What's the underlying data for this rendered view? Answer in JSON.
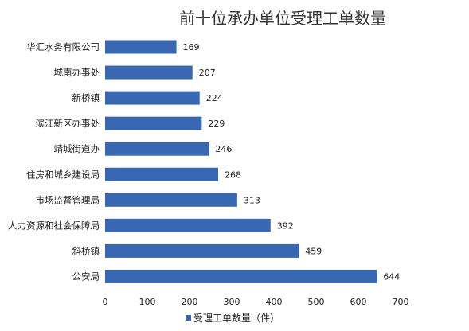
{
  "chart_data": {
    "type": "bar",
    "orientation": "horizontal",
    "title": "前十位承办单位受理工单数量",
    "categories": [
      "华汇水务有限公司",
      "城南办事处",
      "新桥镇",
      "滨江新区办事处",
      "靖城街道办",
      "住房和城乡建设局",
      "市场监督管理局",
      "人力资源和社会保障局",
      "斜桥镇",
      "公安局"
    ],
    "series": [
      {
        "name": "受理工单数量（件）",
        "values": [
          169,
          207,
          224,
          229,
          246,
          268,
          313,
          392,
          459,
          644
        ],
        "color": "#3A67B1"
      }
    ],
    "xlim": [
      0,
      700
    ],
    "xticks": [
      0,
      100,
      200,
      300,
      400,
      500,
      600,
      700
    ],
    "xlabel": "",
    "ylabel": "",
    "grid": false,
    "legend_position": "bottom",
    "data_labels": true
  }
}
